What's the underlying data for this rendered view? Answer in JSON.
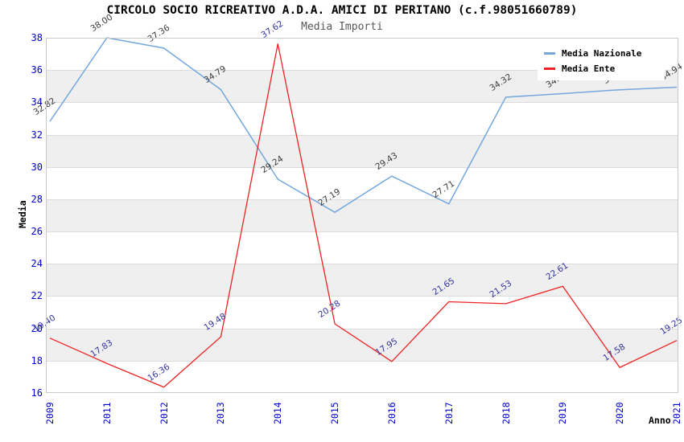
{
  "header": {
    "title": "CIRCOLO SOCIO RICREATIVO A.D.A. AMICI DI PERITANO (c.f.98051660789)",
    "subtitle": "Media Importi"
  },
  "axes": {
    "y_label": "Media",
    "x_label": "Anno",
    "y_ticks": [
      38,
      36,
      34,
      32,
      30,
      28,
      26,
      24,
      22,
      20,
      18,
      16
    ],
    "tick_color": "#0000cc"
  },
  "legend": {
    "position": "top-right",
    "items": [
      {
        "label": "Media Nazionale",
        "color": "#74a7dc"
      },
      {
        "label": "Media Ente",
        "color": "#ee2222"
      }
    ]
  },
  "chart_data": {
    "type": "line",
    "title": "CIRCOLO SOCIO RICREATIVO A.D.A. AMICI DI PERITANO (c.f.98051660789)",
    "subtitle": "Media Importi",
    "xlabel": "Anno",
    "ylabel": "Media",
    "categories": [
      "2009",
      "2011",
      "2012",
      "2013",
      "2014",
      "2015",
      "2016",
      "2017",
      "2018",
      "2019",
      "2020",
      "2021"
    ],
    "series": [
      {
        "name": "Media Nazionale",
        "color": "#74a7dc",
        "label_color": "#3b3b3b",
        "values": [
          32.82,
          38.0,
          37.36,
          34.79,
          29.24,
          27.19,
          29.43,
          27.71,
          34.32,
          34.54,
          34.78,
          34.94
        ],
        "note": "labels at 2019 and 2020 are partially hidden behind the legend; those two values estimated from line position"
      },
      {
        "name": "Media Ente",
        "color": "#ee2222",
        "label_color": "#3333a0",
        "values": [
          19.4,
          17.83,
          16.36,
          19.48,
          37.62,
          20.28,
          17.95,
          21.65,
          21.53,
          22.61,
          17.58,
          19.25
        ]
      }
    ],
    "ylim": [
      16,
      38
    ],
    "ytick_step": 2,
    "grid": "horizontal-bands",
    "band_colors": [
      "#ffffff",
      "#efefef"
    ],
    "legend_position": "top-right",
    "point_labels": "each point labeled with its value to 2 decimals, rotated ~33deg"
  }
}
